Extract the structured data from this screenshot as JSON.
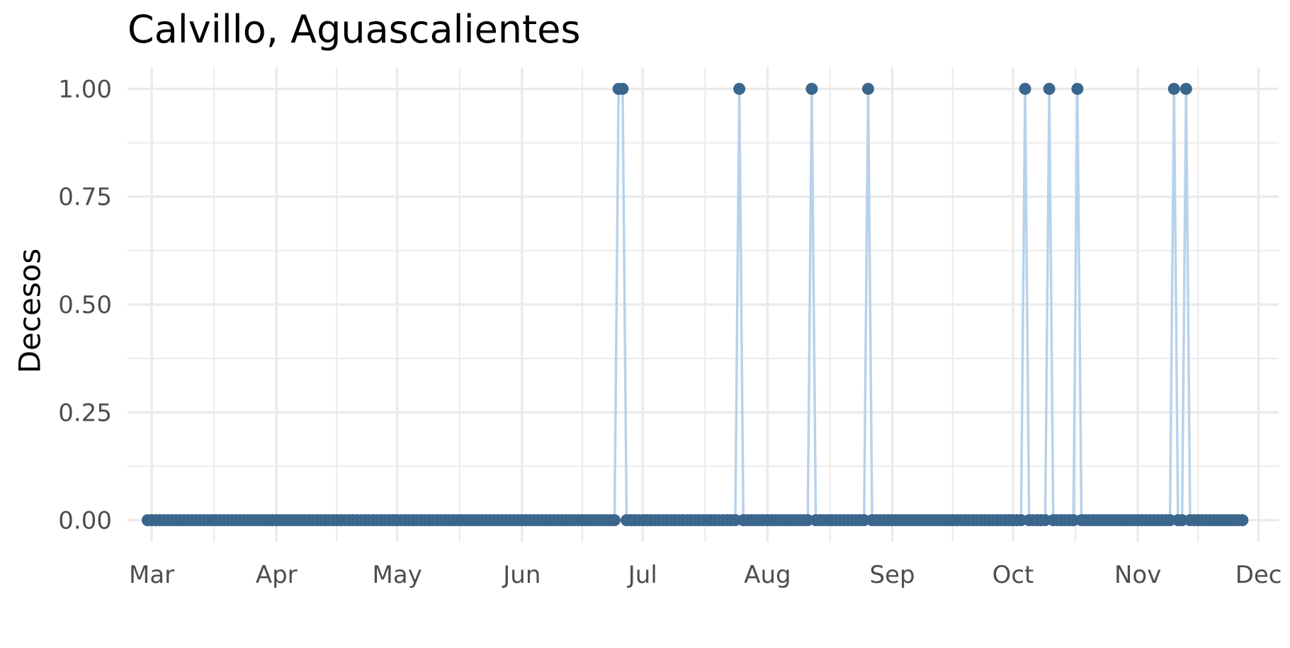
{
  "chart_data": {
    "type": "line",
    "title": "Calvillo, Aguascalientes",
    "xlabel": "",
    "ylabel": "Decesos",
    "x_start": "2020-02-29",
    "x_end": "2020-11-27",
    "xlim": [
      "2020-02-24",
      "2020-12-06"
    ],
    "ylim": [
      -0.05,
      1.05
    ],
    "y_ticks": [
      0,
      0.25,
      0.5,
      0.75,
      1
    ],
    "y_tick_labels": [
      "0.00",
      "0.25",
      "0.50",
      "0.75",
      "1.00"
    ],
    "x_ticks": [
      "2020-03-01",
      "2020-04-01",
      "2020-05-01",
      "2020-06-01",
      "2020-07-01",
      "2020-08-01",
      "2020-09-01",
      "2020-10-01",
      "2020-11-01",
      "2020-12-01"
    ],
    "x_tick_labels": [
      "Mar",
      "Apr",
      "May",
      "Jun",
      "Jul",
      "Aug",
      "Sep",
      "Oct",
      "Nov",
      "Dec"
    ],
    "series": [
      {
        "default_value": 0,
        "nonzero_points": [
          {
            "x": "2020-06-25",
            "y": 1
          },
          {
            "x": "2020-06-26",
            "y": 1
          },
          {
            "x": "2020-07-25",
            "y": 1
          },
          {
            "x": "2020-08-12",
            "y": 1
          },
          {
            "x": "2020-08-26",
            "y": 1
          },
          {
            "x": "2020-10-04",
            "y": 1
          },
          {
            "x": "2020-10-10",
            "y": 1
          },
          {
            "x": "2020-10-17",
            "y": 1
          },
          {
            "x": "2020-11-10",
            "y": 1
          },
          {
            "x": "2020-11-13",
            "y": 1
          }
        ]
      }
    ],
    "grid": true,
    "line_color": "#b8d2ea",
    "point_color": "#3a668c",
    "grid_color": "#ebebeb"
  }
}
